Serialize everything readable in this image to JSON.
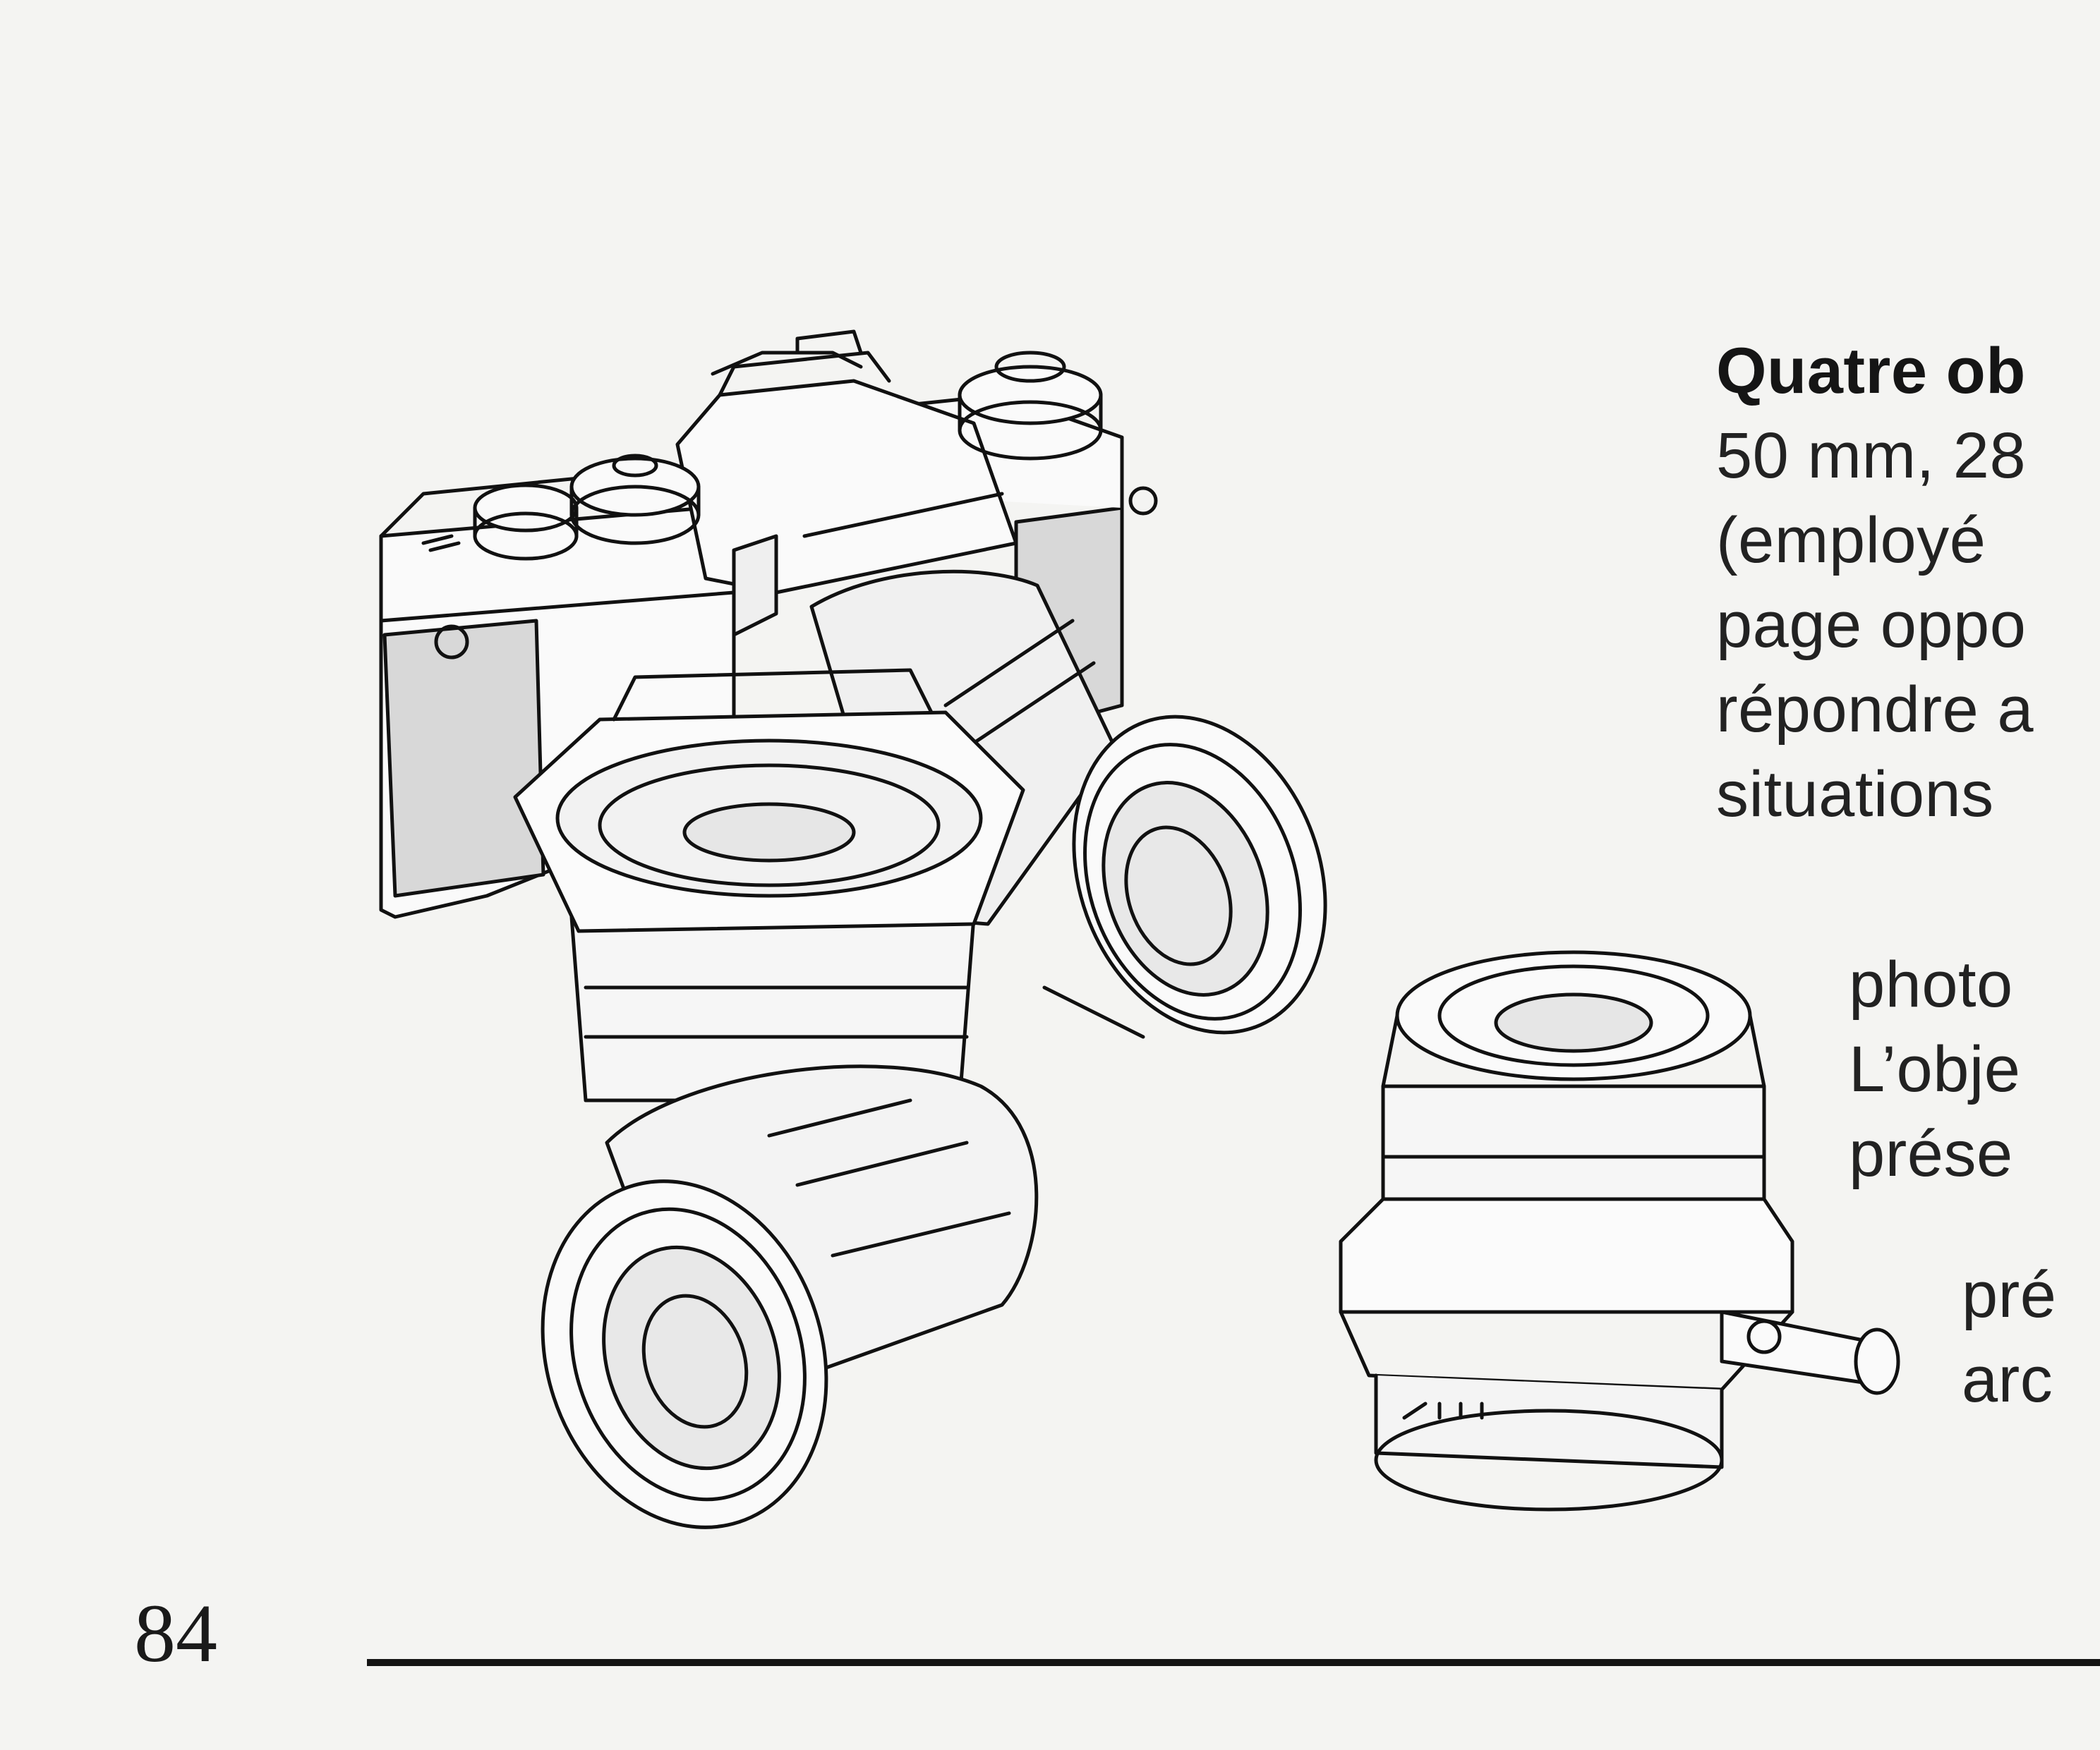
{
  "page": {
    "page_number": "84",
    "text_lines": [
      "Quatre ob",
      "50 mm, 28",
      "(employé",
      "page oppo",
      "répondre a",
      "situations",
      "photo",
      "L’obje",
      "prése",
      "pré",
      "arc"
    ]
  },
  "illustration": {
    "subject": "camera-with-four-lenses"
  }
}
